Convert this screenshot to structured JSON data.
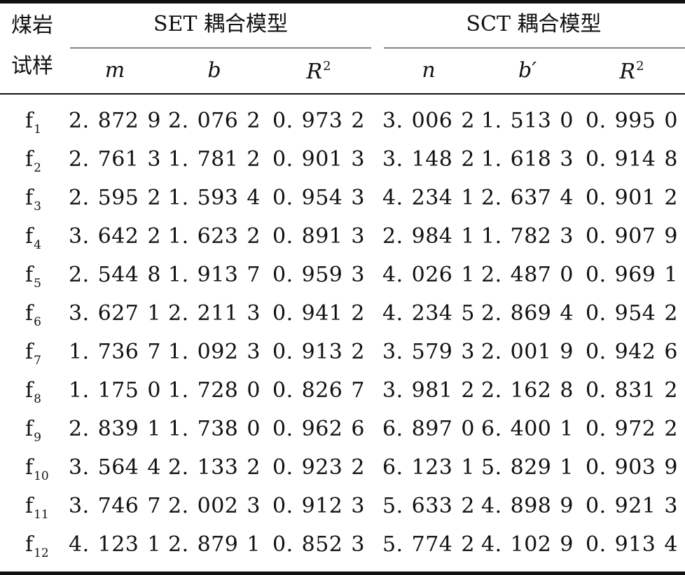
{
  "table": {
    "stub_header": [
      "煤岩",
      "试样"
    ],
    "groups": [
      {
        "label": "SET 耦合模型",
        "columns": [
          {
            "symbol": "m",
            "sup": ""
          },
          {
            "symbol": "b",
            "sup": ""
          },
          {
            "symbol": "R",
            "sup": "2"
          }
        ]
      },
      {
        "label": "SCT 耦合模型",
        "columns": [
          {
            "symbol": "n",
            "sup": ""
          },
          {
            "symbol": "b′",
            "sup": ""
          },
          {
            "symbol": "R",
            "sup": "2"
          }
        ]
      }
    ],
    "rows": [
      {
        "sample": "f",
        "sub": "1",
        "values": [
          "2. 872 9",
          "2. 076 2",
          "0. 973 2",
          "3. 006 2",
          "1. 513 0",
          "0. 995 0"
        ]
      },
      {
        "sample": "f",
        "sub": "2",
        "values": [
          "2. 761 3",
          "1. 781 2",
          "0. 901 3",
          "3. 148 2",
          "1. 618 3",
          "0. 914 8"
        ]
      },
      {
        "sample": "f",
        "sub": "3",
        "values": [
          "2. 595 2",
          "1. 593 4",
          "0. 954 3",
          "4. 234 1",
          "2. 637 4",
          "0. 901 2"
        ]
      },
      {
        "sample": "f",
        "sub": "4",
        "values": [
          "3. 642 2",
          "1. 623 2",
          "0. 891 3",
          "2. 984 1",
          "1. 782 3",
          "0. 907 9"
        ]
      },
      {
        "sample": "f",
        "sub": "5",
        "values": [
          "2. 544 8",
          "1. 913 7",
          "0. 959 3",
          "4. 026 1",
          "2. 487 0",
          "0. 969 1"
        ]
      },
      {
        "sample": "f",
        "sub": "6",
        "values": [
          "3. 627 1",
          "2. 211 3",
          "0. 941 2",
          "4. 234 5",
          "2. 869 4",
          "0. 954 2"
        ]
      },
      {
        "sample": "f",
        "sub": "7",
        "values": [
          "1. 736 7",
          "1. 092 3",
          "0. 913 2",
          "3. 579 3",
          "2. 001 9",
          "0. 942 6"
        ]
      },
      {
        "sample": "f",
        "sub": "8",
        "values": [
          "1. 175 0",
          "1. 728 0",
          "0. 826 7",
          "3. 981 2",
          "2. 162 8",
          "0. 831 2"
        ]
      },
      {
        "sample": "f",
        "sub": "9",
        "values": [
          "2. 839 1",
          "1. 738 0",
          "0. 962 6",
          "6. 897 0",
          "6. 400 1",
          "0. 972 2"
        ]
      },
      {
        "sample": "f",
        "sub": "10",
        "values": [
          "3. 564 4",
          "2. 133 2",
          "0. 923 2",
          "6. 123 1",
          "5. 829 1",
          "0. 903 9"
        ]
      },
      {
        "sample": "f",
        "sub": "11",
        "values": [
          "3. 746 7",
          "2. 002 3",
          "0. 912 3",
          "5. 633 2",
          "4. 898 9",
          "0. 921 3"
        ]
      },
      {
        "sample": "f",
        "sub": "12",
        "values": [
          "4. 123 1",
          "2. 879 1",
          "0. 852 3",
          "5. 774 2",
          "4. 102 9",
          "0. 913 4"
        ]
      }
    ]
  }
}
